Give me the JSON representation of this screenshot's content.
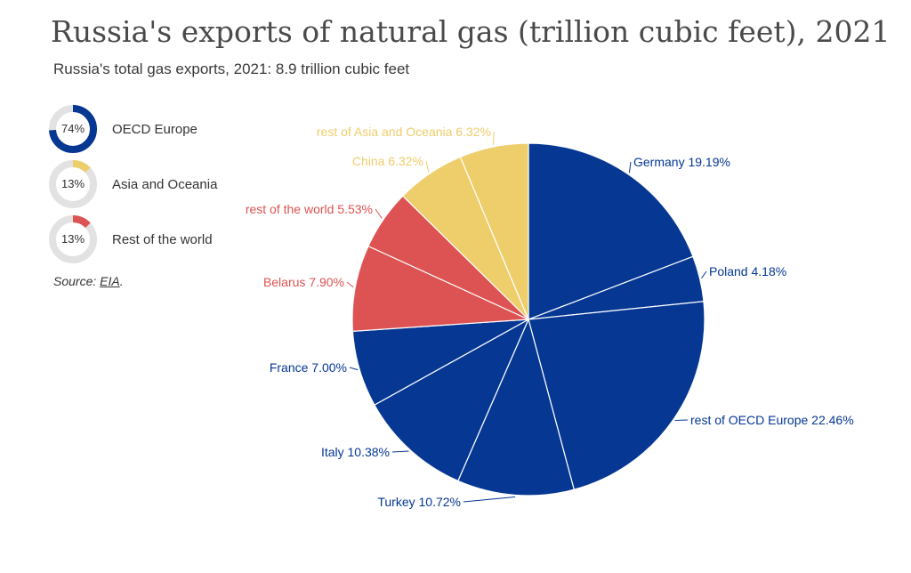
{
  "title": "Russia's exports of natural gas (trillion cubic feet), 2021",
  "subtitle": "Russia's total gas exports, 2021: 8.9 trillion cubic feet",
  "colors": {
    "oecd": "#053793",
    "asia": "#eecd6b",
    "rest": "#dd5353",
    "track": "#e2e2e2"
  },
  "legend": [
    {
      "pct": "74%",
      "value": 74,
      "label": "OECD Europe",
      "color": "#053793"
    },
    {
      "pct": "13%",
      "value": 13,
      "label": "Asia and Oceania",
      "color": "#eecd6b"
    },
    {
      "pct": "13%",
      "value": 13,
      "label": "Rest of the world",
      "color": "#dd5353"
    }
  ],
  "source": {
    "prefix": "Source: ",
    "link": "EIA",
    "suffix": "."
  },
  "chart_data": {
    "type": "pie",
    "slices": [
      {
        "label": "Germany 19.19%",
        "value": 19.19,
        "color": "#053793"
      },
      {
        "label": "Poland 4.18%",
        "value": 4.18,
        "color": "#053793"
      },
      {
        "label": "rest of OECD Europe 22.46%",
        "value": 22.46,
        "color": "#053793"
      },
      {
        "label": "Turkey 10.72%",
        "value": 10.72,
        "color": "#053793"
      },
      {
        "label": "Italy 10.38%",
        "value": 10.38,
        "color": "#053793"
      },
      {
        "label": "France 7.00%",
        "value": 7.0,
        "color": "#053793"
      },
      {
        "label": "Belarus 7.90%",
        "value": 7.9,
        "color": "#dd5353"
      },
      {
        "label": "rest of the world 5.53%",
        "value": 5.53,
        "color": "#dd5353"
      },
      {
        "label": "China 6.32%",
        "value": 6.32,
        "color": "#eecd6b"
      },
      {
        "label": "rest of Asia and Oceania 6.32%",
        "value": 6.32,
        "color": "#eecd6b"
      }
    ]
  }
}
